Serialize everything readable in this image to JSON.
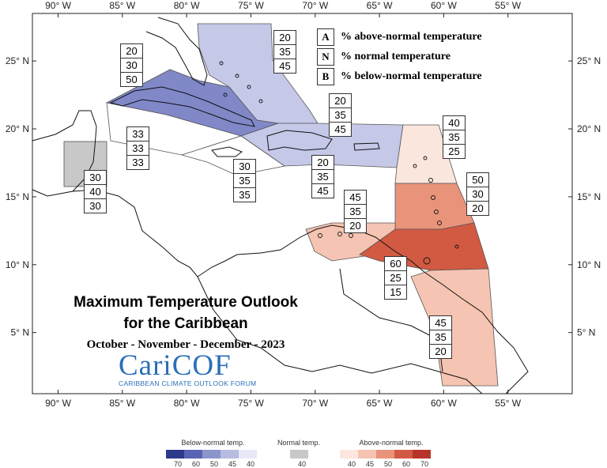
{
  "map": {
    "lon_ticks": [
      "90° W",
      "85° W",
      "80° W",
      "75° W",
      "70° W",
      "65° W",
      "60° W",
      "55° W"
    ],
    "lat_ticks": [
      "25° N",
      "20° N",
      "15° N",
      "10° N",
      "5° N"
    ],
    "lon_values": [
      -90,
      -85,
      -80,
      -75,
      -70,
      -65,
      -60,
      -55
    ],
    "lat_values": [
      25,
      20,
      15,
      10,
      5
    ],
    "extent": {
      "lon_min": -92,
      "lon_max": -50,
      "lat_min": 0.5,
      "lat_max": 28.5
    }
  },
  "key": [
    {
      "letter": "A",
      "text": "% above-normal temperature"
    },
    {
      "letter": "N",
      "text": "% normal temperature"
    },
    {
      "letter": "B",
      "text": "% below-normal temperature"
    }
  ],
  "title": {
    "line1": "Maximum Temperature Outlook",
    "line2": "for the Caribbean",
    "period": "October - November - December - 2023"
  },
  "logo": {
    "name": "CariCOF",
    "subtitle": "CARIBBEAN CLIMATE OUTLOOK FORUM"
  },
  "regions": [
    {
      "id": "bahamas",
      "probs": [
        "20",
        "35",
        "45"
      ],
      "color": "#c6c8e8"
    },
    {
      "id": "cuba",
      "probs": [
        "20",
        "30",
        "50"
      ],
      "color": "#8088c8"
    },
    {
      "id": "hispaniola",
      "probs": [
        "20",
        "35",
        "45"
      ],
      "color": "#c6c8e8"
    },
    {
      "id": "puerto-rico",
      "probs": [
        "20",
        "35",
        "45"
      ],
      "color": "#c6c8e8"
    },
    {
      "id": "leeward-islands",
      "probs": [
        "40",
        "35",
        "25"
      ],
      "color": "#fbe6dd"
    },
    {
      "id": "windward-islands",
      "probs": [
        "50",
        "30",
        "20"
      ],
      "color": "#e8937a"
    },
    {
      "id": "trinidad",
      "probs": [
        "60",
        "25",
        "15"
      ],
      "color": "#d25a42"
    },
    {
      "id": "guianas",
      "probs": [
        "45",
        "35",
        "20"
      ],
      "color": "#f6c4b2"
    },
    {
      "id": "abc-islands",
      "probs": [
        "45",
        "35",
        "20"
      ],
      "color": "#f6c4b2"
    },
    {
      "id": "cayman",
      "probs": [
        "33",
        "33",
        "33"
      ],
      "color": "#ffffff"
    },
    {
      "id": "jamaica",
      "probs": [
        "30",
        "35",
        "35"
      ],
      "color": "#ffffff"
    },
    {
      "id": "belize",
      "probs": [
        "30",
        "40",
        "30"
      ],
      "color": "#c8c8c8"
    }
  ],
  "legend": {
    "below_label": "Below-normal temp.",
    "normal_label": "Normal temp.",
    "above_label": "Above-normal temp.",
    "below_colors": [
      "#2c3a8c",
      "#5a64b4",
      "#8c94cc",
      "#b8bce0",
      "#e6e8f6"
    ],
    "below_ticks": [
      "70",
      "60",
      "50",
      "45",
      "40"
    ],
    "normal_color": "#c8c8c8",
    "normal_ticks": [
      "40"
    ],
    "above_colors": [
      "#fce6de",
      "#f6c4b2",
      "#e8937a",
      "#d25a42",
      "#b8332a"
    ],
    "above_ticks": [
      "40",
      "45",
      "50",
      "60",
      "70"
    ]
  }
}
